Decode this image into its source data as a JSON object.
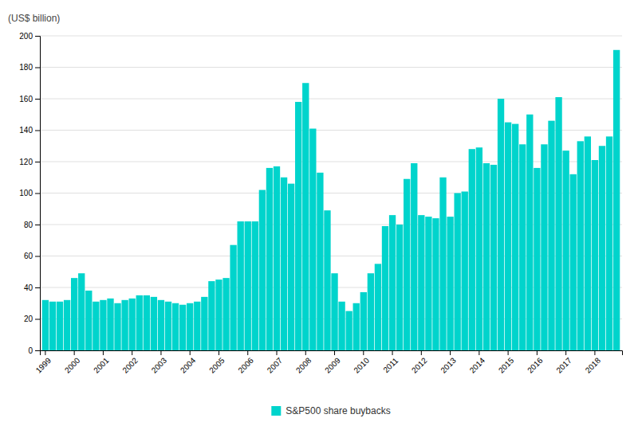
{
  "chart_data": {
    "type": "bar",
    "ylabel": "(US$ billion)",
    "categories": [
      "1999",
      null,
      null,
      null,
      "2000",
      null,
      null,
      null,
      "2001",
      null,
      null,
      null,
      "2002",
      null,
      null,
      null,
      "2003",
      null,
      null,
      null,
      "2004",
      null,
      null,
      null,
      "2005",
      null,
      null,
      null,
      "2006",
      null,
      null,
      null,
      "2007",
      null,
      null,
      null,
      "2008",
      null,
      null,
      null,
      "2009",
      null,
      null,
      null,
      "2010",
      null,
      null,
      null,
      "2011",
      null,
      null,
      null,
      "2012",
      null,
      null,
      null,
      "2013",
      null,
      null,
      null,
      "2014",
      null,
      null,
      null,
      "2015",
      null,
      null,
      null,
      "2016",
      null,
      null,
      null,
      "2017",
      null,
      null,
      null,
      "2018",
      null,
      null,
      null
    ],
    "series": [
      {
        "name": "S&P500 share buybacks",
        "color": "#00D4CC",
        "values": [
          32,
          31,
          31,
          32,
          46,
          49,
          38,
          31,
          32,
          33,
          30,
          32,
          33,
          35,
          35,
          34,
          32,
          31,
          30,
          29,
          30,
          31,
          34,
          44,
          45,
          46,
          67,
          82,
          82,
          82,
          102,
          116,
          117,
          110,
          106,
          158,
          170,
          141,
          113,
          89,
          49,
          31,
          25,
          30,
          37,
          49,
          55,
          79,
          86,
          80,
          109,
          119,
          86,
          85,
          84,
          110,
          85,
          100,
          101,
          128,
          129,
          119,
          118,
          160,
          145,
          144,
          131,
          150,
          116,
          131,
          146,
          161,
          127,
          112,
          133,
          136,
          121,
          130,
          136,
          191
        ]
      }
    ],
    "ylim": [
      0,
      200
    ],
    "yticks": [
      0,
      20,
      40,
      60,
      80,
      100,
      120,
      140,
      160,
      180,
      200
    ],
    "grid": true,
    "legend": "bottom"
  }
}
